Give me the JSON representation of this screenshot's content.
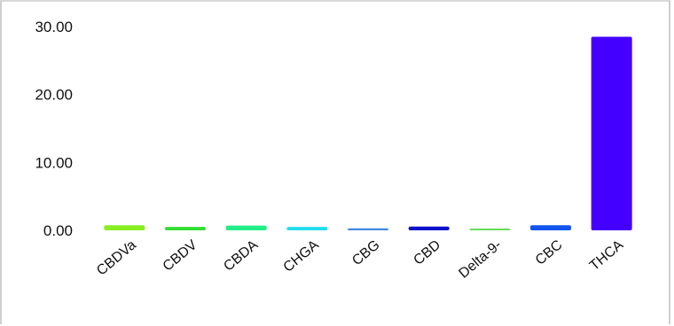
{
  "chart_data": {
    "type": "bar",
    "title": "",
    "xlabel": "",
    "ylabel": "",
    "categories": [
      "CBDVa",
      "CBDV",
      "CBDA",
      "CHGA",
      "CBG",
      "CBD",
      "Delta-9-",
      "CBC",
      "THCA"
    ],
    "values": [
      0.75,
      0.5,
      0.7,
      0.5,
      0.3,
      0.55,
      0.15,
      0.75,
      28.5
    ],
    "colors": [
      "#88ee22",
      "#33dd33",
      "#22ee88",
      "#22ddee",
      "#4488dd",
      "#1111cc",
      "#66dd55",
      "#1155ee",
      "#4400ff"
    ],
    "ylim": [
      0,
      30
    ],
    "yticks": [
      0,
      10,
      20,
      30
    ],
    "ytick_labels": [
      "0.00",
      "10.00",
      "20.00",
      "30.00"
    ],
    "grid": false,
    "legend": "none"
  }
}
